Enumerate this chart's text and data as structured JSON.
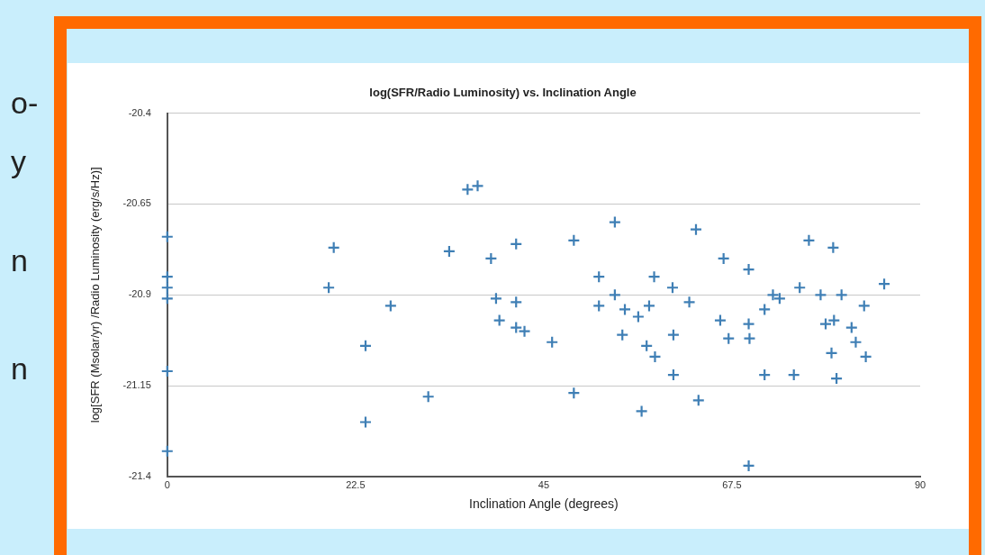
{
  "chart_data": {
    "type": "scatter",
    "title": "log(SFR/Radio Luminosity) vs. Inclination Angle",
    "xlabel": "Inclination Angle (degrees)",
    "ylabel": "log[SFR (Msolar/yr) /Radio Luminosity (erg/s/Hz)]",
    "xlim": [
      0,
      90
    ],
    "xticks": [
      0,
      22.5,
      45,
      67.5,
      90
    ],
    "ylim": [
      -21.4,
      -20.4
    ],
    "yticks": [
      -21.4,
      -21.15,
      -20.9,
      -20.65,
      -20.4
    ],
    "grid": "y",
    "marker": "cross",
    "annotations": [
      "o-",
      "y",
      "n",
      "n"
    ],
    "series": [
      {
        "color": "#3f7fb5",
        "x": [
          0,
          0,
          0,
          0,
          0,
          0,
          19.9,
          19.3,
          23.7,
          23.7,
          26.7,
          31.2,
          33.7,
          35.9,
          37.1,
          38.7,
          39.3,
          39.7,
          41.7,
          41.7,
          41.7,
          42.7,
          46.0,
          48.6,
          48.6,
          51.6,
          51.6,
          53.5,
          53.5,
          54.4,
          54.7,
          56.3,
          56.7,
          57.3,
          57.6,
          58.2,
          58.3,
          60.4,
          60.5,
          60.5,
          62.4,
          63.2,
          63.5,
          66.1,
          66.5,
          67.1,
          69.5,
          69.5,
          69.6,
          69.5,
          71.4,
          71.4,
          72.4,
          73.2,
          74.9,
          75.6,
          76.7,
          78.1,
          78.7,
          79.4,
          79.7,
          79.6,
          80.0,
          80.6,
          81.8,
          82.3,
          83.3,
          83.5,
          85.7
        ],
        "values": [
          -20.74,
          -20.85,
          -20.88,
          -20.91,
          -21.11,
          -21.33,
          -20.77,
          -20.88,
          -21.04,
          -21.25,
          -20.93,
          -21.18,
          -20.78,
          -20.61,
          -20.6,
          -20.8,
          -20.91,
          -20.97,
          -20.76,
          -20.92,
          -20.99,
          -21.0,
          -21.03,
          -20.75,
          -21.17,
          -20.85,
          -20.93,
          -20.7,
          -20.9,
          -21.01,
          -20.94,
          -20.96,
          -21.22,
          -21.04,
          -20.93,
          -20.85,
          -21.07,
          -20.88,
          -21.01,
          -21.12,
          -20.92,
          -20.72,
          -21.19,
          -20.97,
          -20.8,
          -21.02,
          -20.83,
          -20.98,
          -21.02,
          -21.37,
          -20.94,
          -21.12,
          -20.9,
          -20.91,
          -21.12,
          -20.88,
          -20.75,
          -20.9,
          -20.98,
          -21.06,
          -20.97,
          -20.77,
          -21.13,
          -20.9,
          -20.99,
          -21.03,
          -20.93,
          -21.07,
          -20.87
        ]
      }
    ]
  }
}
